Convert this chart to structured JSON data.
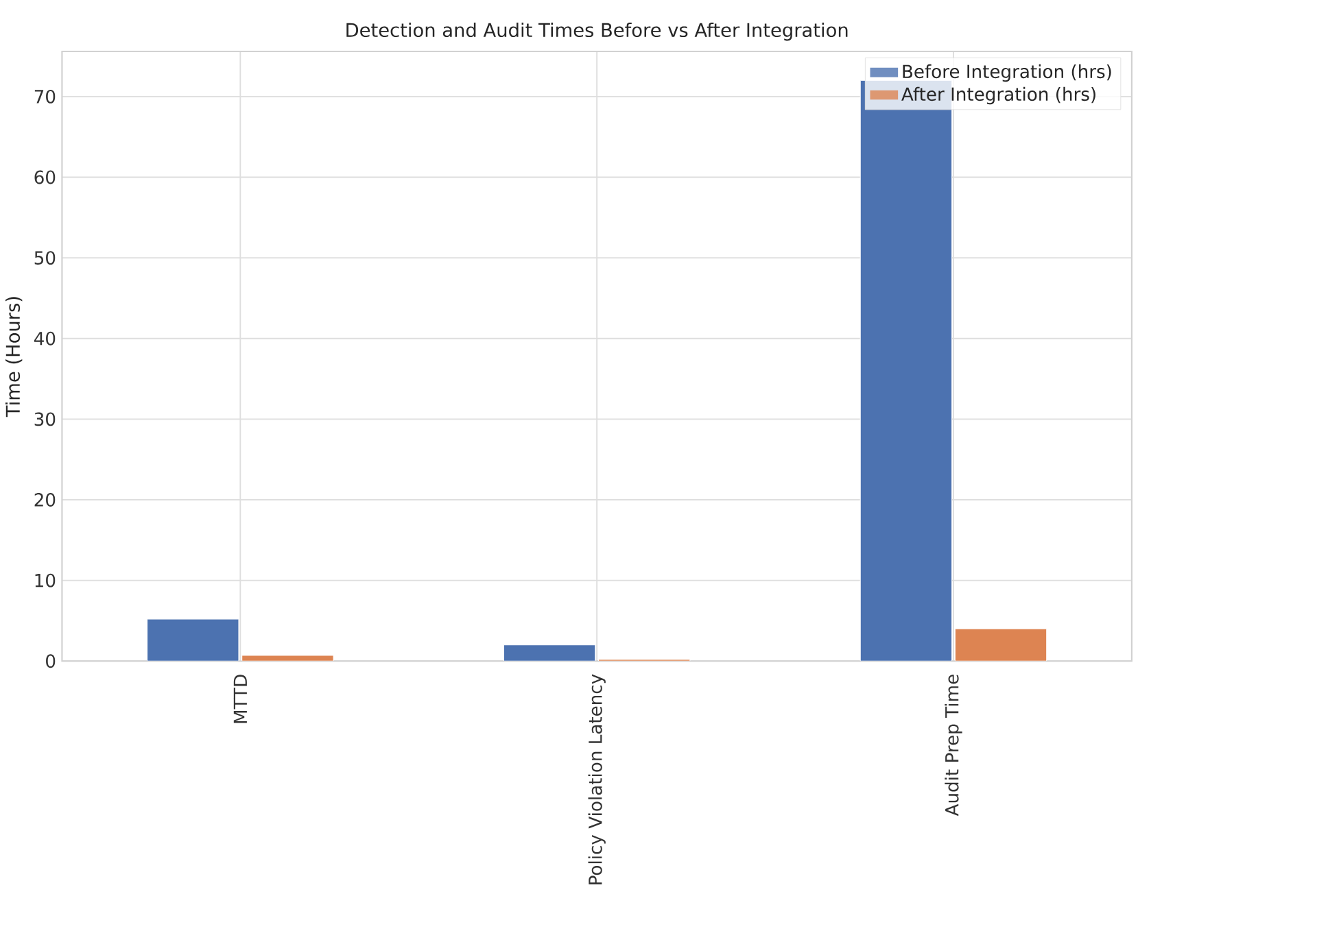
{
  "chart_data": {
    "type": "bar",
    "title": "Detection and Audit Times Before vs After Integration",
    "ylabel": "Time (Hours)",
    "categories": [
      "MTTD",
      "Policy Violation Latency",
      "Audit Prep Time"
    ],
    "series": [
      {
        "name": "Before Integration (hrs)",
        "color": "#4c72b0",
        "values": [
          5.2,
          2,
          72
        ]
      },
      {
        "name": "After Integration (hrs)",
        "color": "#dd8452",
        "values": [
          0.7,
          0.2,
          4
        ]
      }
    ],
    "ylim": [
      0,
      75.6
    ],
    "yticks": [
      0,
      10,
      20,
      30,
      40,
      50,
      60,
      70
    ],
    "grid": true,
    "legend": "top right"
  }
}
